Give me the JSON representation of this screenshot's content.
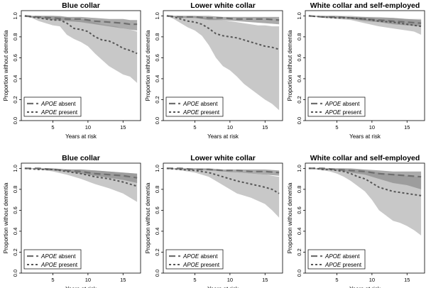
{
  "chart_data": [
    {
      "type": "line",
      "title": "Blue collar",
      "xlabel": "Years at risk",
      "ylabel": "Proportion without dementia",
      "xlim": [
        0.5,
        17.5
      ],
      "ylim": [
        0,
        1.05
      ],
      "xticks": [
        5,
        10,
        15
      ],
      "yticks": [
        0.0,
        0.2,
        0.4,
        0.6,
        0.8,
        1.0
      ],
      "legend": {
        "position": "bottom-left",
        "entries": [
          {
            "gene": "APOE",
            "label": " absent"
          },
          {
            "gene": "APOE",
            "label": " present"
          }
        ]
      },
      "series": [
        {
          "name": "APOE absent",
          "style": "dashed-thick",
          "x": [
            1,
            3,
            5,
            7,
            9,
            11,
            13,
            15,
            16,
            17
          ],
          "y": [
            1.0,
            0.99,
            0.98,
            0.97,
            0.97,
            0.95,
            0.94,
            0.93,
            0.92,
            0.92
          ],
          "lower": [
            0.99,
            0.98,
            0.96,
            0.95,
            0.94,
            0.92,
            0.9,
            0.88,
            0.87,
            0.86
          ],
          "upper": [
            1.0,
            1.0,
            1.0,
            0.99,
            0.99,
            0.98,
            0.97,
            0.97,
            0.96,
            0.96
          ]
        },
        {
          "name": "APOE present",
          "style": "dotted",
          "x": [
            1,
            2,
            3,
            4,
            5,
            6,
            7,
            8,
            9,
            10,
            11,
            12,
            13,
            14,
            15,
            16,
            17
          ],
          "y": [
            1.0,
            0.99,
            0.98,
            0.97,
            0.96,
            0.96,
            0.93,
            0.88,
            0.87,
            0.85,
            0.8,
            0.77,
            0.76,
            0.73,
            0.69,
            0.67,
            0.64
          ],
          "lower": [
            1.0,
            0.98,
            0.95,
            0.93,
            0.91,
            0.9,
            0.82,
            0.78,
            0.75,
            0.71,
            0.64,
            0.58,
            0.52,
            0.48,
            0.44,
            0.42,
            0.36
          ],
          "upper": [
            1.0,
            1.0,
            1.0,
            1.0,
            1.0,
            1.0,
            0.99,
            0.97,
            0.97,
            0.96,
            0.94,
            0.92,
            0.91,
            0.9,
            0.88,
            0.87,
            0.85
          ]
        }
      ]
    },
    {
      "type": "line",
      "title": "Lower white collar",
      "xlabel": "Years at risk",
      "ylabel": "Proportion without dementia",
      "xlim": [
        0.5,
        17.5
      ],
      "ylim": [
        0,
        1.05
      ],
      "xticks": [
        5,
        10,
        15
      ],
      "yticks": [
        0.0,
        0.2,
        0.4,
        0.6,
        0.8,
        1.0
      ],
      "legend": {
        "position": "bottom-left",
        "entries": [
          {
            "gene": "APOE",
            "label": " absent"
          },
          {
            "gene": "APOE",
            "label": " present"
          }
        ]
      },
      "series": [
        {
          "name": "APOE absent",
          "style": "dashed-thick",
          "x": [
            1,
            3,
            5,
            7,
            9,
            11,
            13,
            15,
            17
          ],
          "y": [
            1.0,
            0.99,
            0.99,
            0.98,
            0.98,
            0.97,
            0.97,
            0.97,
            0.96
          ],
          "lower": [
            1.0,
            0.98,
            0.98,
            0.96,
            0.96,
            0.95,
            0.94,
            0.93,
            0.92
          ],
          "upper": [
            1.0,
            1.0,
            1.0,
            1.0,
            0.99,
            0.99,
            0.99,
            0.99,
            0.99
          ]
        },
        {
          "name": "APOE present",
          "style": "dotted",
          "x": [
            1,
            2,
            3,
            4,
            5,
            6,
            7,
            8,
            9,
            10,
            11,
            12,
            13,
            14,
            15,
            16,
            17
          ],
          "y": [
            1.0,
            0.99,
            0.97,
            0.95,
            0.94,
            0.92,
            0.88,
            0.83,
            0.81,
            0.8,
            0.79,
            0.77,
            0.75,
            0.73,
            0.71,
            0.7,
            0.68
          ],
          "lower": [
            1.0,
            0.97,
            0.93,
            0.89,
            0.86,
            0.81,
            0.72,
            0.6,
            0.52,
            0.48,
            0.42,
            0.35,
            0.3,
            0.25,
            0.2,
            0.16,
            0.1
          ],
          "upper": [
            1.0,
            1.0,
            1.0,
            1.0,
            1.0,
            0.99,
            0.98,
            0.97,
            0.96,
            0.95,
            0.94,
            0.93,
            0.92,
            0.91,
            0.91,
            0.9,
            0.9
          ]
        }
      ]
    },
    {
      "type": "line",
      "title": "White collar and self-employed",
      "xlabel": "Years at risk",
      "ylabel": "Proportion without dementia",
      "xlim": [
        0.5,
        17.5
      ],
      "ylim": [
        0,
        1.05
      ],
      "xticks": [
        5,
        10,
        15
      ],
      "yticks": [
        0.0,
        0.2,
        0.4,
        0.6,
        0.8,
        1.0
      ],
      "legend": {
        "position": "bottom-left",
        "entries": [
          {
            "gene": "APOE",
            "label": " absent"
          },
          {
            "gene": "APOE",
            "label": " present"
          }
        ]
      },
      "series": [
        {
          "name": "APOE absent",
          "style": "dashed-thick",
          "x": [
            1,
            3,
            5,
            7,
            9,
            11,
            13,
            15,
            17
          ],
          "y": [
            1.0,
            0.99,
            0.99,
            0.98,
            0.97,
            0.96,
            0.95,
            0.94,
            0.93
          ],
          "lower": [
            1.0,
            0.99,
            0.98,
            0.97,
            0.95,
            0.94,
            0.92,
            0.91,
            0.9
          ],
          "upper": [
            1.0,
            1.0,
            1.0,
            0.99,
            0.99,
            0.98,
            0.98,
            0.97,
            0.96
          ]
        },
        {
          "name": "APOE present",
          "style": "dotted",
          "x": [
            1,
            3,
            5,
            7,
            9,
            11,
            13,
            15,
            16,
            17
          ],
          "y": [
            1.0,
            0.99,
            0.98,
            0.98,
            0.97,
            0.95,
            0.94,
            0.92,
            0.91,
            0.9
          ],
          "lower": [
            1.0,
            0.98,
            0.97,
            0.96,
            0.93,
            0.9,
            0.88,
            0.86,
            0.85,
            0.82
          ],
          "upper": [
            1.0,
            1.0,
            1.0,
            1.0,
            0.99,
            0.99,
            0.98,
            0.97,
            0.97,
            0.97
          ]
        }
      ]
    },
    {
      "type": "line",
      "title": "Blue  collar",
      "xlabel": "Years at risk",
      "ylabel": "Proportion without dementia",
      "xlim": [
        0.5,
        17.5
      ],
      "ylim": [
        0,
        1.05
      ],
      "xticks": [
        5,
        10,
        15
      ],
      "yticks": [
        0.0,
        0.2,
        0.4,
        0.6,
        0.8,
        1.0
      ],
      "legend": {
        "position": "bottom-left",
        "entries": [
          {
            "gene": "APOE",
            "label": " absent"
          },
          {
            "gene": "APOE",
            "label": " present"
          }
        ]
      },
      "series": [
        {
          "name": "APOE absent",
          "style": "dashed-thick",
          "x": [
            1,
            3,
            5,
            7,
            9,
            11,
            13,
            15,
            17
          ],
          "y": [
            1.0,
            1.0,
            0.99,
            0.98,
            0.97,
            0.95,
            0.94,
            0.93,
            0.91
          ],
          "lower": [
            1.0,
            0.99,
            0.98,
            0.97,
            0.95,
            0.93,
            0.91,
            0.89,
            0.86
          ],
          "upper": [
            1.0,
            1.0,
            1.0,
            0.99,
            0.99,
            0.98,
            0.97,
            0.96,
            0.95
          ]
        },
        {
          "name": "APOE present",
          "style": "dotted",
          "x": [
            1,
            3,
            5,
            7,
            9,
            11,
            13,
            15,
            17
          ],
          "y": [
            1.0,
            0.99,
            0.99,
            0.97,
            0.95,
            0.92,
            0.9,
            0.87,
            0.83
          ],
          "lower": [
            1.0,
            0.99,
            0.97,
            0.94,
            0.9,
            0.85,
            0.81,
            0.76,
            0.68
          ],
          "upper": [
            1.0,
            1.0,
            1.0,
            0.99,
            0.99,
            0.98,
            0.97,
            0.96,
            0.95
          ]
        }
      ]
    },
    {
      "type": "line",
      "title": "Lower white collar",
      "xlabel": "Years at risk",
      "ylabel": "Proportion without dementia",
      "xlim": [
        0.5,
        17.5
      ],
      "ylim": [
        0,
        1.05
      ],
      "xticks": [
        5,
        10,
        15
      ],
      "yticks": [
        0.0,
        0.2,
        0.4,
        0.6,
        0.8,
        1.0
      ],
      "legend": {
        "position": "bottom-left",
        "entries": [
          {
            "gene": "APOE",
            "label": " absent"
          },
          {
            "gene": "APOE",
            "label": " present"
          }
        ]
      },
      "series": [
        {
          "name": "APOE absent",
          "style": "dashed-thick",
          "x": [
            1,
            3,
            5,
            7,
            9,
            11,
            13,
            15,
            17
          ],
          "y": [
            1.0,
            1.0,
            0.99,
            0.99,
            0.98,
            0.98,
            0.97,
            0.97,
            0.96
          ],
          "lower": [
            1.0,
            0.99,
            0.99,
            0.98,
            0.97,
            0.96,
            0.95,
            0.94,
            0.93
          ],
          "upper": [
            1.0,
            1.0,
            1.0,
            1.0,
            0.99,
            0.99,
            0.99,
            0.99,
            0.98
          ]
        },
        {
          "name": "APOE present",
          "style": "dotted",
          "x": [
            1,
            3,
            5,
            7,
            9,
            11,
            13,
            15,
            16,
            17
          ],
          "y": [
            1.0,
            0.99,
            0.98,
            0.96,
            0.92,
            0.88,
            0.85,
            0.82,
            0.8,
            0.76
          ],
          "lower": [
            1.0,
            0.98,
            0.96,
            0.92,
            0.84,
            0.76,
            0.72,
            0.66,
            0.6,
            0.53
          ],
          "upper": [
            1.0,
            1.0,
            1.0,
            0.99,
            0.98,
            0.96,
            0.95,
            0.94,
            0.93,
            0.92
          ]
        }
      ]
    },
    {
      "type": "line",
      "title": "White collar and self-employed",
      "xlabel": "Years at risk",
      "ylabel": "Proportion without dementia",
      "xlim": [
        0.5,
        17.5
      ],
      "ylim": [
        0,
        1.05
      ],
      "xticks": [
        5,
        10,
        15
      ],
      "yticks": [
        0.0,
        0.2,
        0.4,
        0.6,
        0.8,
        1.0
      ],
      "legend": {
        "position": "bottom-left",
        "entries": [
          {
            "gene": "APOE",
            "label": " absent"
          },
          {
            "gene": "APOE",
            "label": " present"
          }
        ]
      },
      "series": [
        {
          "name": "APOE absent",
          "style": "dashed-thick",
          "x": [
            1,
            3,
            5,
            7,
            9,
            11,
            13,
            15,
            17
          ],
          "y": [
            1.0,
            1.0,
            0.99,
            0.98,
            0.97,
            0.95,
            0.94,
            0.93,
            0.92
          ],
          "lower": [
            1.0,
            0.99,
            0.98,
            0.96,
            0.94,
            0.9,
            0.86,
            0.84,
            0.8
          ],
          "upper": [
            1.0,
            1.0,
            1.0,
            1.0,
            0.99,
            0.98,
            0.97,
            0.97,
            0.97
          ]
        },
        {
          "name": "APOE present",
          "style": "dotted",
          "x": [
            1,
            2,
            3,
            4,
            5,
            6,
            7,
            8,
            9,
            10,
            11,
            12,
            13,
            14,
            15,
            16,
            17
          ],
          "y": [
            1.0,
            1.0,
            0.99,
            0.99,
            0.98,
            0.97,
            0.95,
            0.92,
            0.9,
            0.86,
            0.82,
            0.8,
            0.78,
            0.77,
            0.76,
            0.75,
            0.74
          ],
          "lower": [
            1.0,
            0.99,
            0.98,
            0.97,
            0.95,
            0.92,
            0.88,
            0.83,
            0.78,
            0.7,
            0.6,
            0.55,
            0.5,
            0.48,
            0.45,
            0.41,
            0.36
          ],
          "upper": [
            1.0,
            1.0,
            1.0,
            1.0,
            1.0,
            1.0,
            0.99,
            0.99,
            0.98,
            0.97,
            0.96,
            0.95,
            0.95,
            0.94,
            0.93,
            0.92,
            0.92
          ]
        }
      ]
    }
  ]
}
